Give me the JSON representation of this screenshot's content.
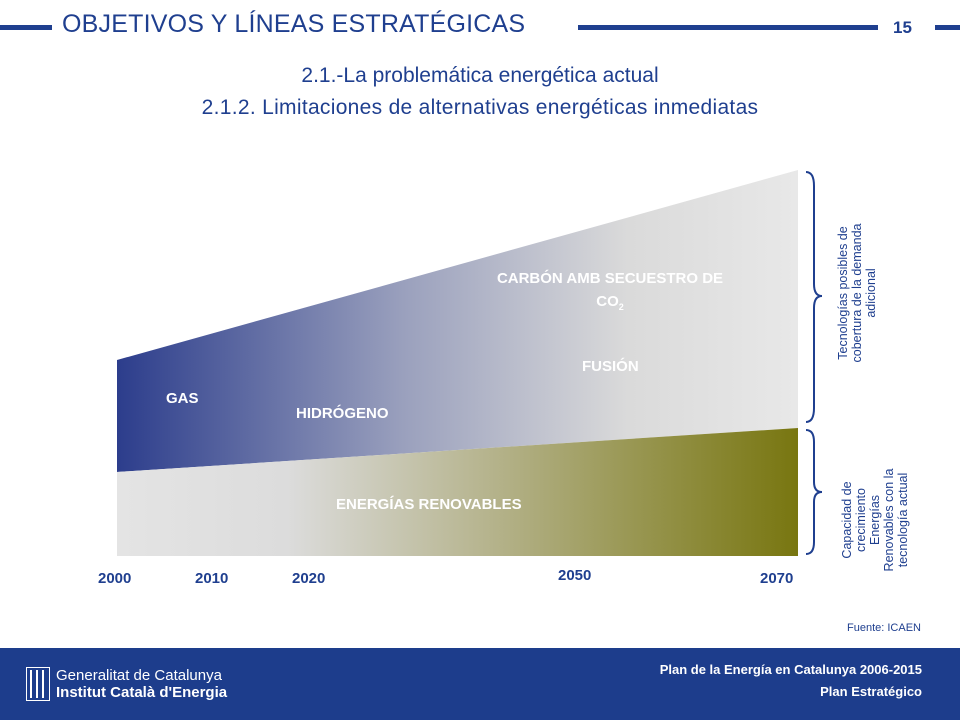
{
  "header": {
    "title": "OBJETIVOS Y LÍNEAS ESTRATÉGICAS",
    "page_number": "15"
  },
  "subtitle": {
    "line1": "2.1.-La problemática energética actual",
    "line2": "2.1.2. Limitaciones de alternativas energéticas inmediatas"
  },
  "diagram": {
    "labels": {
      "carbon_line1": "CARBÓN AMB SECUESTRO DE",
      "carbon_line2": "CO",
      "carbon_sub": "2",
      "fusion": "FUSIÓN",
      "gas": "GAS",
      "hidrogeno": "HIDRÓGENO",
      "renovables": "ENERGÍAS RENOVABLES"
    },
    "years": [
      "2000",
      "2010",
      "2020",
      "2050",
      "2070"
    ],
    "brace_upper": {
      "line1": "Tecnologías posibles de",
      "line2": "cobertura de la demanda",
      "line3": "adicional"
    },
    "brace_lower": {
      "line1": "Capacidad de",
      "line2": "crecimiento",
      "line3": "Energías",
      "line4": "Renovables con la",
      "line5": "tecnología actual"
    },
    "colors": {
      "upper_start": "#2c3d8c",
      "upper_end": "#e6e6e6",
      "lower_start": "#e2e2e2",
      "lower_end": "#7a7812",
      "accent": "#1f3f8f"
    }
  },
  "source": "Fuente: ICAEN",
  "footer": {
    "org_line1": "Generalitat de Catalunya",
    "org_line2": "Institut Català d'Energia",
    "plan_line1": "Plan de la Energía en Catalunya 2006-2015",
    "plan_line2": "Plan Estratégico"
  }
}
